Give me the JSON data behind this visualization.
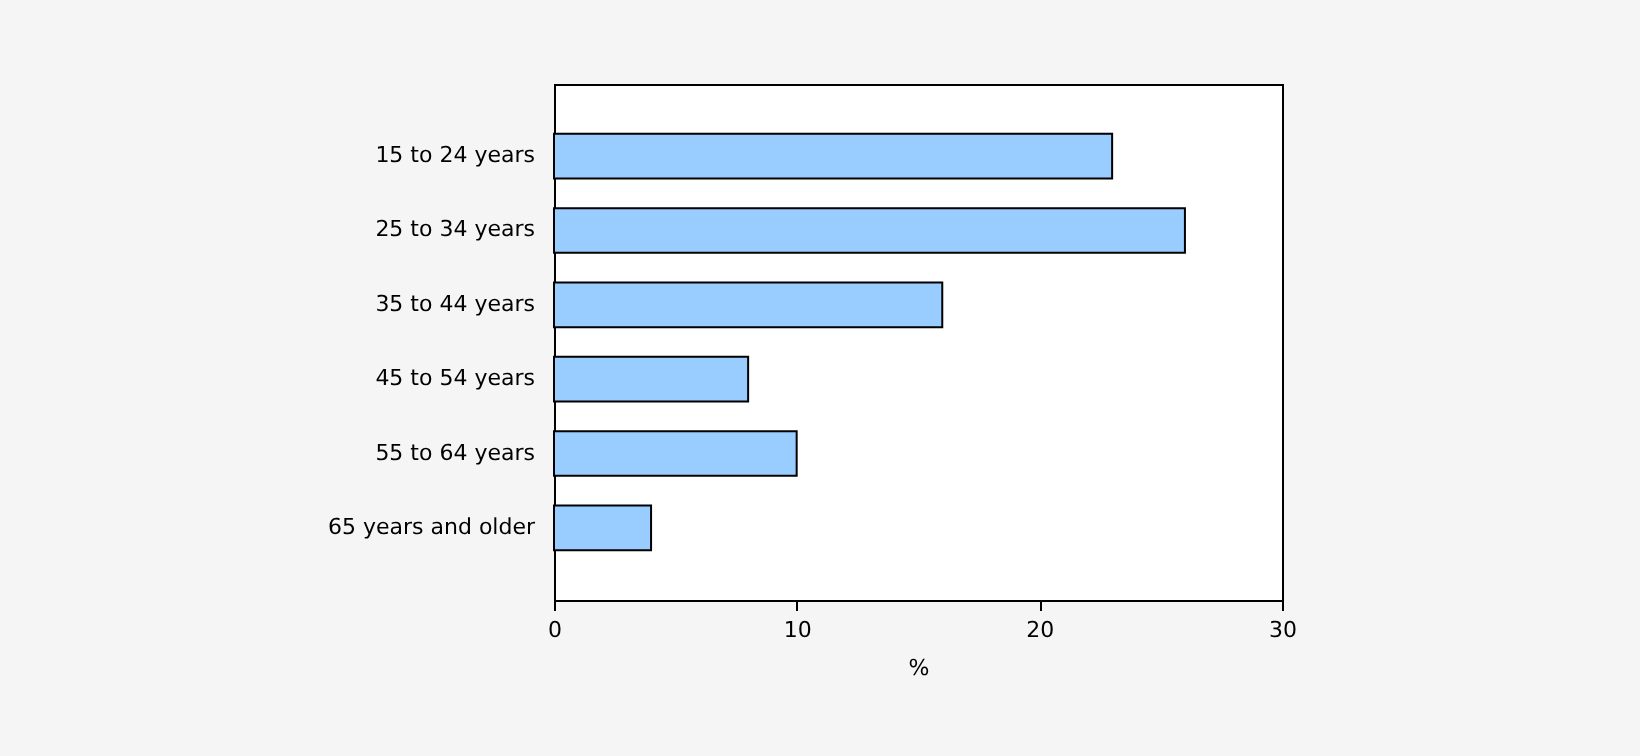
{
  "chart_data": {
    "type": "bar",
    "orientation": "horizontal",
    "xlabel": "%",
    "categories": [
      "15 to 24 years",
      "25 to 34 years",
      "35 to 44 years",
      "45 to 54 years",
      "55 to 64 years",
      "65 years and older"
    ],
    "values": [
      23,
      26,
      16,
      8,
      10,
      4
    ],
    "color": "#99ccff",
    "xlim": [
      0,
      30
    ],
    "xticks": [
      0,
      10,
      20,
      30
    ],
    "grid": false
  }
}
